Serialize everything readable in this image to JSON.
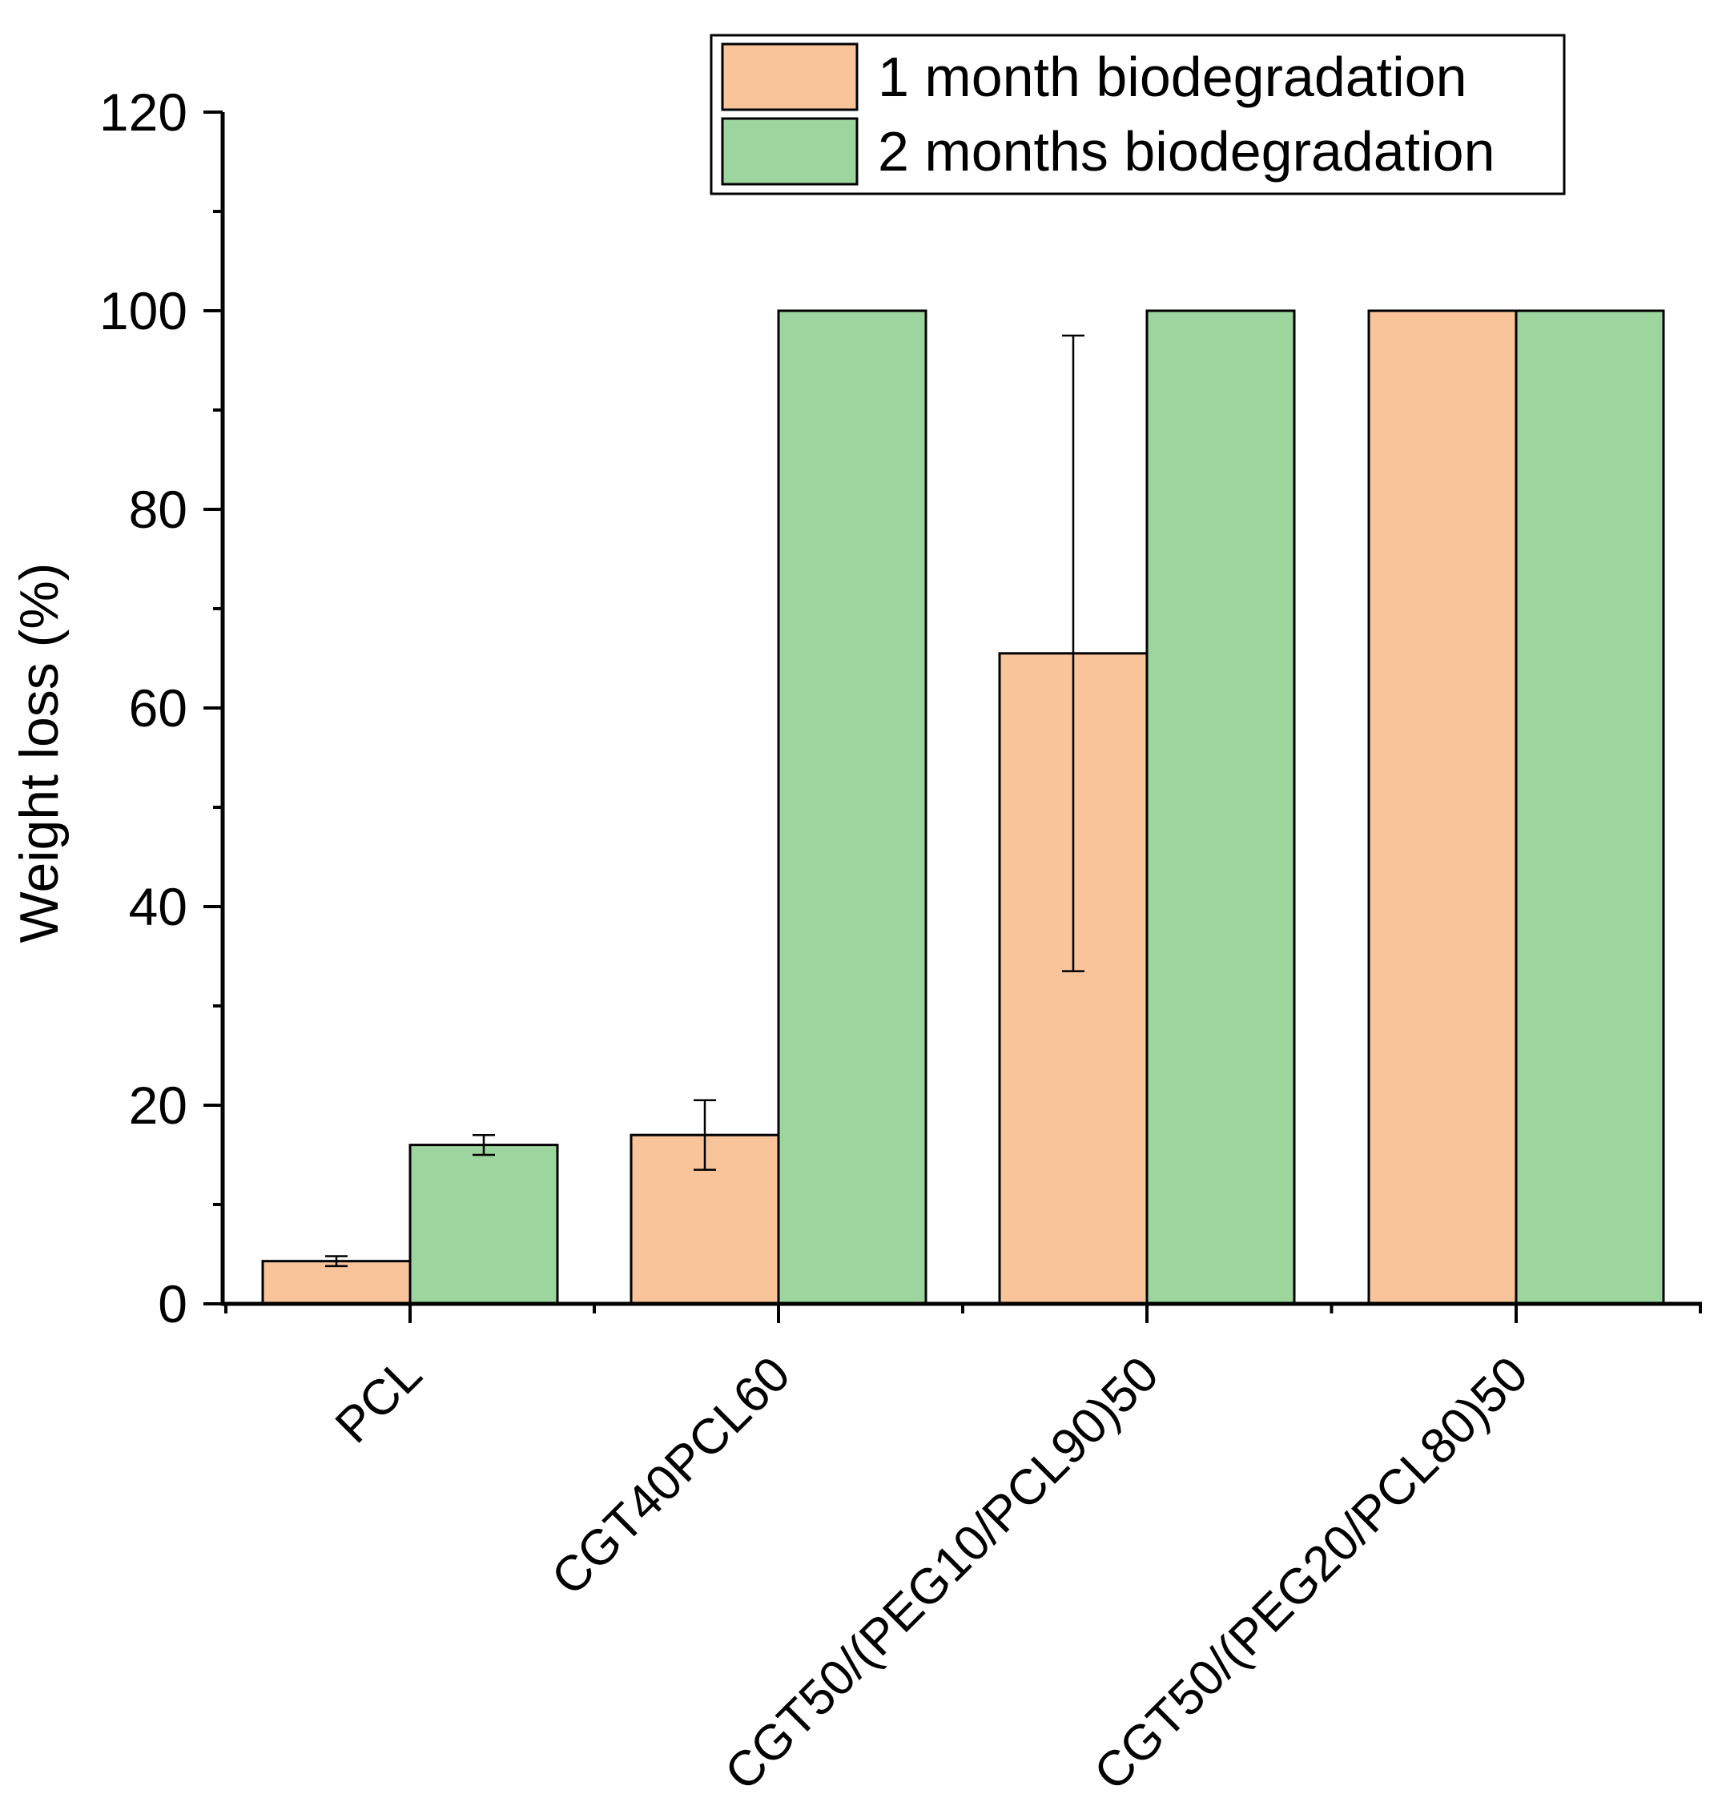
{
  "chart_data": {
    "type": "bar",
    "title": "",
    "xlabel": "",
    "ylabel": "Weight loss (%)",
    "ylim": [
      0,
      120
    ],
    "yticks": [
      0,
      20,
      40,
      60,
      80,
      100,
      120
    ],
    "categories": [
      "PCL",
      "CGT40PCL60",
      "CGT50/(PEG10/PCL90)50",
      "CGT50/(PEG20/PCL80)50"
    ],
    "series": [
      {
        "name": "1 month biodegradation",
        "color": "#F9C49A",
        "values": [
          4.3,
          17.0,
          65.5,
          100
        ],
        "errors": [
          0.5,
          3.5,
          32.0,
          0
        ]
      },
      {
        "name": "2 months biodegradation",
        "color": "#9DD59E",
        "values": [
          16.0,
          100,
          100,
          100
        ],
        "errors": [
          1.0,
          0,
          0,
          0
        ]
      }
    ],
    "legend_position": "top-right",
    "grid": false
  }
}
